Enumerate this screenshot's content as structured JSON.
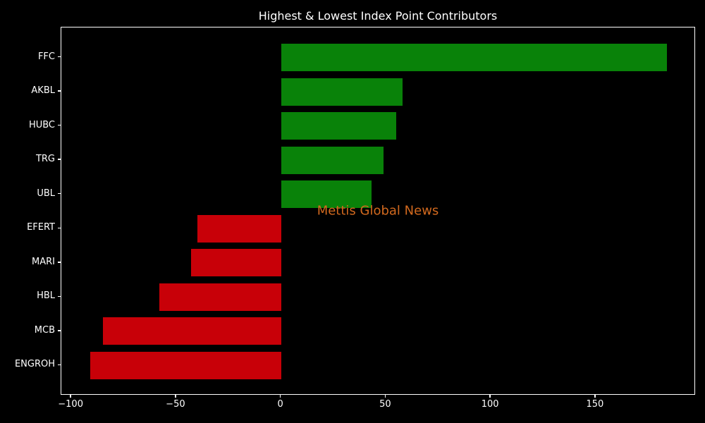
{
  "chart_data": {
    "type": "bar",
    "orientation": "horizontal",
    "title": "Highest & Lowest Index Point Contributors",
    "categories": [
      "FFC",
      "AKBL",
      "HUBC",
      "TRG",
      "UBL",
      "EFERT",
      "MARI",
      "HBL",
      "MCB",
      "ENGROH"
    ],
    "values": [
      184,
      58,
      55,
      49,
      43,
      -40,
      -43,
      -58,
      -85,
      -91
    ],
    "positive_color": "#098209",
    "negative_color": "#c80008",
    "xticks": [
      -100,
      -50,
      0,
      50,
      100,
      150
    ],
    "xtick_labels": [
      "−100",
      "−50",
      "0",
      "50",
      "100",
      "150"
    ],
    "xlim": [
      -104.75,
      197.75
    ],
    "background_color": "#000000",
    "text_color": "#ffffff",
    "grid": false,
    "legend": null,
    "bar_height_fraction": 0.8
  },
  "watermark": {
    "text": "Mettis Global News",
    "color": "#d2691e"
  }
}
